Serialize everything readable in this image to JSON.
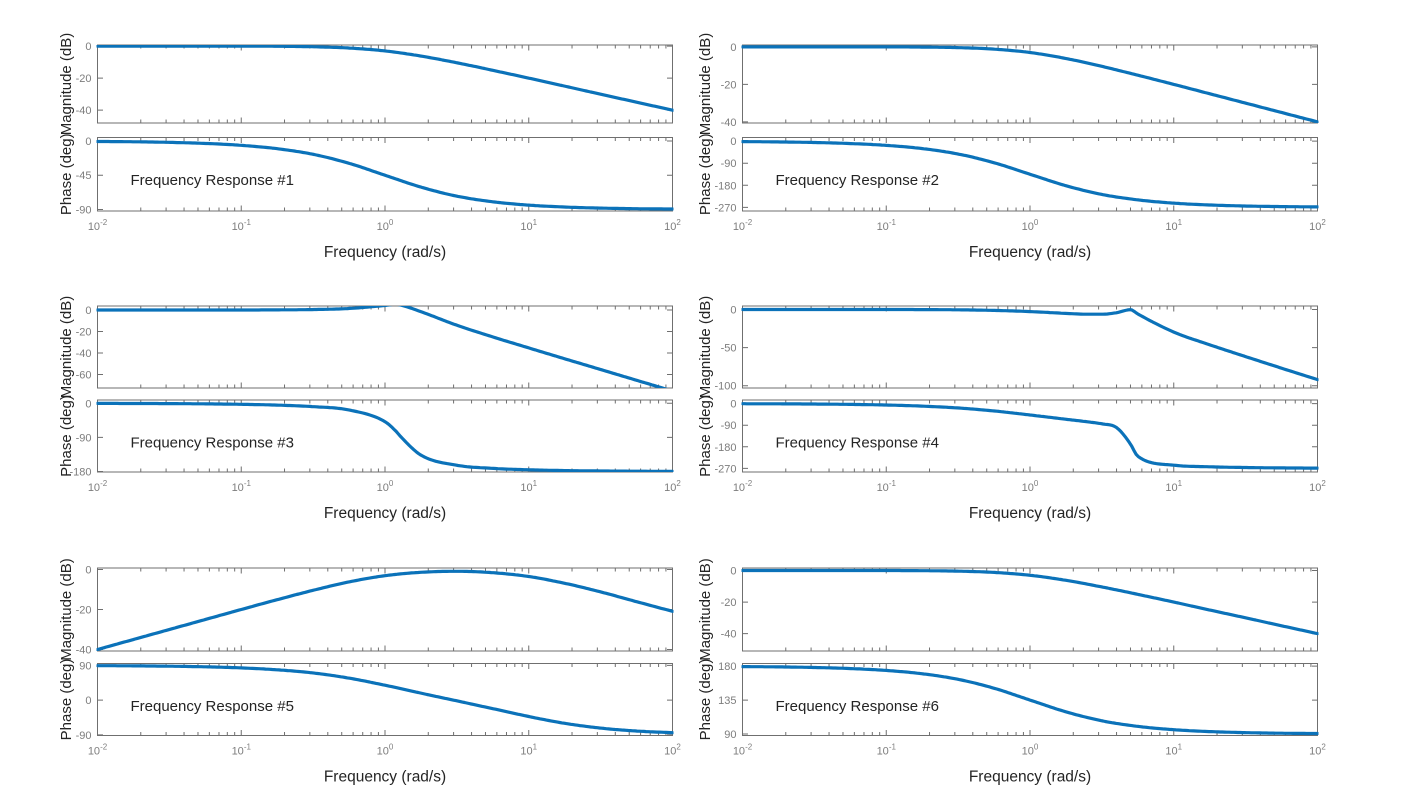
{
  "figure": {
    "kind": "bode-plot-grid",
    "rows": 3,
    "cols": 2,
    "colors": {
      "line": "#0B72B9",
      "axis_box": "#6f6f6f",
      "tick_label": "#7d7d7d",
      "label_text": "#242424",
      "background": "#ffffff"
    }
  },
  "chart_data": [
    {
      "index": 1,
      "type": "line",
      "title": "Frequency Response #1",
      "xlabel": "Frequency  (rad/s)",
      "x_scale": "log",
      "xlim_log10": [
        -2,
        2
      ],
      "x_tick_exponents": [
        -2,
        -1,
        0,
        1,
        2
      ],
      "magnitude": {
        "ylabel": "Magnitude (dB)",
        "yticks": [
          0,
          -20,
          -40
        ],
        "ylim_top": 0.7,
        "ylim_bottom": -48,
        "x_log10": [
          -2,
          -1.75,
          -1.5,
          -1.25,
          -1,
          -0.75,
          -0.5,
          -0.25,
          0,
          0.25,
          0.5,
          0.75,
          1,
          1.25,
          1.5,
          1.75,
          2
        ],
        "values_db": [
          0,
          0,
          0,
          0,
          0,
          -0.1,
          -0.4,
          -1.2,
          -3,
          -6.2,
          -10.4,
          -15.1,
          -20,
          -25,
          -30,
          -35,
          -40
        ]
      },
      "phase": {
        "ylabel": "Phase (deg)",
        "yticks": [
          0,
          -45,
          -90
        ],
        "ylim_top": 4.6,
        "ylim_bottom": -92,
        "x_log10": [
          -2,
          -1.75,
          -1.5,
          -1.25,
          -1,
          -0.75,
          -0.5,
          -0.25,
          0,
          0.25,
          0.5,
          0.75,
          1,
          1.25,
          1.5,
          1.75,
          2
        ],
        "values_deg": [
          -0.6,
          -1,
          -1.8,
          -3.2,
          -5.7,
          -10.1,
          -17.5,
          -29.3,
          -45,
          -60.6,
          -72.5,
          -79.9,
          -84.3,
          -86.8,
          -88.2,
          -89,
          -89.4
        ]
      }
    },
    {
      "index": 2,
      "type": "line",
      "title": "Frequency Response #2",
      "xlabel": "Frequency  (rad/s)",
      "x_scale": "log",
      "xlim_log10": [
        -2,
        2
      ],
      "x_tick_exponents": [
        -2,
        -1,
        0,
        1,
        2
      ],
      "magnitude": {
        "ylabel": "Magnitude (dB)",
        "yticks": [
          0,
          -20,
          -40
        ],
        "ylim_top": 1.0,
        "ylim_bottom": -40.6,
        "x_log10": [
          -2,
          -1.75,
          -1.5,
          -1.25,
          -1,
          -0.75,
          -0.5,
          -0.25,
          0,
          0.25,
          0.5,
          0.75,
          1,
          1.25,
          1.5,
          1.75,
          2
        ],
        "values_db": [
          0,
          0,
          0,
          0,
          0,
          -0.1,
          -0.4,
          -1.2,
          -3,
          -6.2,
          -10.4,
          -15.1,
          -20,
          -25,
          -30,
          -35,
          -40
        ]
      },
      "phase": {
        "ylabel": "Phase (deg)",
        "yticks": [
          0,
          -90,
          -180,
          -270
        ],
        "ylim_top": 15,
        "ylim_bottom": -285,
        "x_log10": [
          -2,
          -1.75,
          -1.5,
          -1.25,
          -1,
          -0.75,
          -0.5,
          -0.25,
          0,
          0.25,
          0.5,
          0.75,
          1,
          1.25,
          1.5,
          1.75,
          2
        ],
        "values_deg": [
          -1.7,
          -3.1,
          -5.4,
          -9.7,
          -17.1,
          -30.2,
          -52.5,
          -88,
          -135,
          -181.8,
          -217.4,
          -239.6,
          -252.9,
          -260.4,
          -264.7,
          -267,
          -268.3
        ]
      }
    },
    {
      "index": 3,
      "type": "line",
      "title": "Frequency Response #3",
      "xlabel": "Frequency  (rad/s)",
      "x_scale": "log",
      "xlim_log10": [
        -2,
        2
      ],
      "x_tick_exponents": [
        -2,
        -1,
        0,
        1,
        2
      ],
      "magnitude": {
        "ylabel": "Magnitude (dB)",
        "yticks": [
          0,
          -20,
          -40,
          -60
        ],
        "ylim_top": 3.7,
        "ylim_bottom": -72.6,
        "x_log10": [
          -2,
          -1.75,
          -1.5,
          -1.25,
          -1,
          -0.75,
          -0.5,
          -0.25,
          0,
          0.072,
          0.114,
          0.25,
          0.5,
          0.75,
          1,
          1.25,
          1.5,
          1.75,
          2
        ],
        "values_db": [
          0,
          0,
          0,
          0,
          0,
          0.1,
          0.4,
          1.4,
          4.2,
          5.3,
          4.4,
          -1.6,
          -14.2,
          -25.1,
          -35.3,
          -45.4,
          -55.4,
          -65.4,
          -75.4
        ]
      },
      "phase": {
        "ylabel": "Phase (deg)",
        "yticks": [
          0,
          -90,
          -180
        ],
        "ylim_top": 8.7,
        "ylim_bottom": -181.3,
        "x_log10": [
          -2,
          -1.75,
          -1.5,
          -1.25,
          -1,
          -0.75,
          -0.5,
          -0.25,
          0,
          0.072,
          0.114,
          0.25,
          0.5,
          0.75,
          1,
          1.25,
          1.5,
          1.75,
          2
        ],
        "values_deg": [
          -0.3,
          -0.5,
          -0.8,
          -1.5,
          -2.7,
          -4.8,
          -8.8,
          -17.7,
          -48.5,
          -72,
          -90,
          -136.7,
          -163.5,
          -171.7,
          -175.5,
          -177.5,
          -178.6,
          -179.2,
          -179.6
        ]
      }
    },
    {
      "index": 4,
      "type": "line",
      "title": "Frequency Response #4",
      "xlabel": "Frequency  (rad/s)",
      "x_scale": "log",
      "xlim_log10": [
        -2,
        2
      ],
      "x_tick_exponents": [
        -2,
        -1,
        0,
        1,
        2
      ],
      "magnitude": {
        "ylabel": "Magnitude (dB)",
        "yticks": [
          0,
          -50,
          -100
        ],
        "ylim_top": 4.6,
        "ylim_bottom": -103,
        "x_log10": [
          -2,
          -1.75,
          -1.5,
          -1.25,
          -1,
          -0.75,
          -0.5,
          -0.25,
          0,
          0.25,
          0.398,
          0.5,
          0.602,
          0.699,
          0.75,
          1,
          1.25,
          1.5,
          1.75,
          2
        ],
        "values_db": [
          0,
          0,
          0,
          0,
          0,
          -0.1,
          -0.4,
          -1.2,
          -2.7,
          -5.1,
          -6.2,
          -6.2,
          -4.2,
          -0.2,
          -5.9,
          -29.6,
          -46.3,
          -61.8,
          -77,
          -92
        ]
      },
      "phase": {
        "ylabel": "Phase (deg)",
        "yticks": [
          0,
          -90,
          -180,
          -270
        ],
        "ylim_top": 15,
        "ylim_bottom": -285,
        "x_log10": [
          -2,
          -1.75,
          -1.5,
          -1.25,
          -1,
          -0.75,
          -0.5,
          -0.25,
          0,
          0.25,
          0.398,
          0.5,
          0.602,
          0.699,
          0.75,
          1,
          1.25,
          1.5,
          1.75,
          2
        ],
        "values_deg": [
          -0.6,
          -1,
          -1.8,
          -3.3,
          -5.9,
          -10.5,
          -18.2,
          -30.6,
          -47.4,
          -65.3,
          -75.8,
          -84.4,
          -100,
          -168.7,
          -219.5,
          -256.7,
          -263.3,
          -266.3,
          -268,
          -268.8
        ]
      }
    },
    {
      "index": 5,
      "type": "line",
      "title": "Frequency Response #5",
      "xlabel": "Frequency  (rad/s)",
      "x_scale": "log",
      "xlim_log10": [
        -2,
        2
      ],
      "x_tick_exponents": [
        -2,
        -1,
        0,
        1,
        2
      ],
      "magnitude": {
        "ylabel": "Magnitude (dB)",
        "yticks": [
          0,
          -20,
          -40
        ],
        "ylim_top": 0.75,
        "ylim_bottom": -40.75,
        "x_log10": [
          -2,
          -1.75,
          -1.5,
          -1.25,
          -1,
          -0.75,
          -0.5,
          -0.25,
          0,
          0.25,
          0.5,
          0.75,
          1,
          1.25,
          1.5,
          1.75,
          2
        ],
        "values_db": [
          -40,
          -35,
          -30,
          -25,
          -20,
          -15.1,
          -10.4,
          -6.2,
          -3.1,
          -1.4,
          -0.9,
          -1.6,
          -3.5,
          -6.9,
          -11.2,
          -16.1,
          -20.9
        ]
      },
      "phase": {
        "ylabel": "Phase (deg)",
        "yticks": [
          90,
          0,
          -90
        ],
        "ylim_top": 95,
        "ylim_bottom": -91.5,
        "x_log10": [
          -2,
          -1.75,
          -1.5,
          -1.25,
          -1,
          -0.75,
          -0.5,
          -0.25,
          0,
          0.25,
          0.5,
          0.75,
          1,
          1.25,
          1.5,
          1.75,
          2
        ],
        "values_deg": [
          89.4,
          88.9,
          88,
          86.4,
          83.6,
          78.7,
          70.5,
          57.1,
          38.7,
          18.2,
          -1.8,
          -21.9,
          -42.3,
          -60,
          -72.3,
          -79.9,
          -84.3
        ]
      }
    },
    {
      "index": 6,
      "type": "line",
      "title": "Frequency Response #6",
      "xlabel": "Frequency  (rad/s)",
      "x_scale": "log",
      "xlim_log10": [
        -2,
        2
      ],
      "x_tick_exponents": [
        -2,
        -1,
        0,
        1,
        2
      ],
      "magnitude": {
        "ylabel": "Magnitude (dB)",
        "yticks": [
          0,
          -20,
          -40
        ],
        "ylim_top": 1.6,
        "ylim_bottom": -51,
        "x_log10": [
          -2,
          -1.75,
          -1.5,
          -1.25,
          -1,
          -0.75,
          -0.5,
          -0.25,
          0,
          0.25,
          0.5,
          0.75,
          1,
          1.25,
          1.5,
          1.75,
          2
        ],
        "values_db": [
          0,
          0,
          0,
          0,
          0,
          -0.1,
          -0.4,
          -1.2,
          -3,
          -6.2,
          -10.4,
          -15.1,
          -20,
          -25,
          -30,
          -35,
          -40
        ]
      },
      "phase": {
        "ylabel": "Phase (deg)",
        "yticks": [
          180,
          135,
          90
        ],
        "ylim_top": 183.5,
        "ylim_bottom": 88,
        "x_log10": [
          -2,
          -1.75,
          -1.5,
          -1.25,
          -1,
          -0.75,
          -0.5,
          -0.25,
          0,
          0.25,
          0.5,
          0.75,
          1,
          1.25,
          1.5,
          1.75,
          2
        ],
        "values_deg": [
          179.4,
          179,
          178.2,
          176.8,
          174.3,
          169.9,
          162.5,
          150.7,
          135,
          119.4,
          107.5,
          100.1,
          95.7,
          93.2,
          91.8,
          91,
          90.6
        ]
      }
    }
  ]
}
